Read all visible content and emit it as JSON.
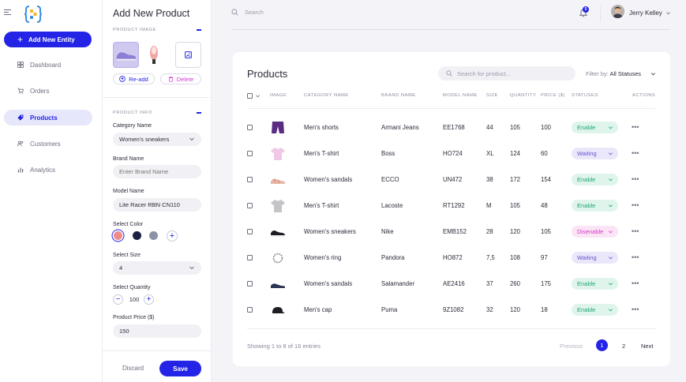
{
  "nav": {
    "add_entity": "Add New Entity",
    "items": [
      {
        "label": "Dashboard",
        "icon": "dashboard-icon"
      },
      {
        "label": "Orders",
        "icon": "orders-icon"
      },
      {
        "label": "Products",
        "icon": "tag-icon",
        "active": true
      },
      {
        "label": "Customers",
        "icon": "customers-icon"
      },
      {
        "label": "Analytics",
        "icon": "analytics-icon"
      }
    ]
  },
  "panel": {
    "title": "Add New Product",
    "image_section": "PRODUCT IMAGE",
    "readd": "Re-add",
    "delete": "Delete",
    "info_section": "PRODUCT INFO",
    "category_label": "Category Name",
    "category_value": "Women's sneakers",
    "brand_label": "Brand Name",
    "brand_placeholder": "Enter Brand Name",
    "model_label": "Model Name",
    "model_value": "Lite Racer RBN CN110",
    "color_label": "Select Color",
    "colors": [
      "#ef8b8b",
      "#1b2145",
      "#8c93a6"
    ],
    "size_label": "Select Size",
    "size_value": "4",
    "quantity_label": "Select Quantity",
    "quantity_value": "100",
    "price_label": "Product Price ($)",
    "price_value": "150",
    "discard": "Discard",
    "save": "Save"
  },
  "topbar": {
    "search_placeholder": "Search",
    "notification_count": "5",
    "user_name": "Jerry Kelley"
  },
  "products": {
    "title": "Products",
    "search_placeholder": "Search for product...",
    "filter_label": "Filter by:",
    "filter_value": "All Statuses",
    "columns": [
      "IMAGE",
      "CATEGORY NAME",
      "BRAND NAME",
      "MODEL NAME",
      "SIZE",
      "QUANTITY",
      "PRICE ($)",
      "STATUSES",
      "ACTIONS"
    ],
    "rows": [
      {
        "image": "shorts",
        "category": "Men's shorts",
        "brand": "Armani Jeans",
        "model": "EE1768",
        "size": "44",
        "quantity": "105",
        "price": "100",
        "status": "Enable"
      },
      {
        "image": "tshirt-pink",
        "category": "Men's T-shirt",
        "brand": "Boss",
        "model": "HO724",
        "size": "XL",
        "quantity": "124",
        "price": "60",
        "status": "Waiting"
      },
      {
        "image": "sandals-pink",
        "category": "Women's sandals",
        "brand": "ECCO",
        "model": "UN472",
        "size": "38",
        "quantity": "172",
        "price": "154",
        "status": "Enable"
      },
      {
        "image": "tshirt-gray",
        "category": "Men's T-shirt",
        "brand": "Lacoste",
        "model": "RT1292",
        "size": "M",
        "quantity": "105",
        "price": "48",
        "status": "Enable"
      },
      {
        "image": "sneaker-black",
        "category": "Women's sneakers",
        "brand": "Nike",
        "model": "EMB152",
        "size": "28",
        "quantity": "120",
        "price": "105",
        "status": "Disenable"
      },
      {
        "image": "ring",
        "category": "Women's ring",
        "brand": "Pandora",
        "model": "HO872",
        "size": "7,5",
        "quantity": "108",
        "price": "97",
        "status": "Waiting"
      },
      {
        "image": "sandals-navy",
        "category": "Women's sandals",
        "brand": "Salamander",
        "model": "AE2416",
        "size": "37",
        "quantity": "260",
        "price": "175",
        "status": "Enable"
      },
      {
        "image": "cap",
        "category": "Men's cap",
        "brand": "Puma",
        "model": "9Z1082",
        "size": "32",
        "quantity": "120",
        "price": "18",
        "status": "Enable"
      }
    ],
    "showing": "Showing 1 to 8 of 16 entries",
    "prev": "Previous",
    "page1": "1",
    "page2": "2",
    "next": "Next"
  }
}
